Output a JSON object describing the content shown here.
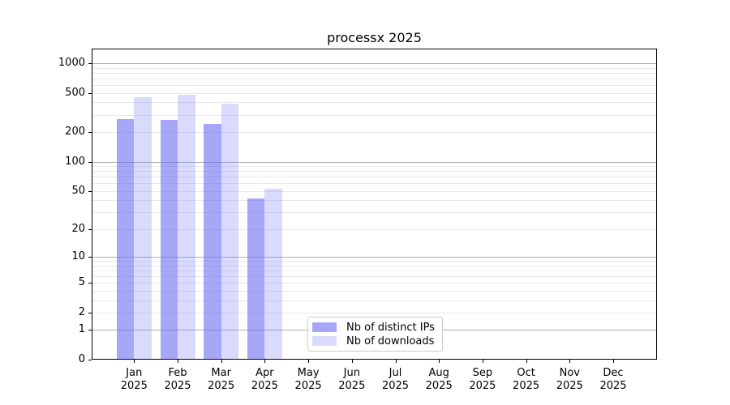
{
  "title": "processx 2025",
  "chart_data": {
    "type": "bar",
    "title": "processx 2025",
    "categories": [
      "Jan",
      "Feb",
      "Mar",
      "Apr",
      "May",
      "Jun",
      "Jul",
      "Aug",
      "Sep",
      "Oct",
      "Nov",
      "Dec"
    ],
    "category_year_line": "2025",
    "series": [
      {
        "name": "Nb of distinct IPs",
        "color": "rgba(108,108,242,0.60)",
        "values": [
          270,
          266,
          244,
          42,
          null,
          null,
          null,
          null,
          null,
          null,
          null,
          null
        ]
      },
      {
        "name": "Nb of downloads",
        "color": "rgba(108,108,242,0.25)",
        "values": [
          455,
          480,
          390,
          53,
          null,
          null,
          null,
          null,
          null,
          null,
          null,
          null
        ]
      }
    ],
    "yscale": "log1p",
    "yticks": [
      0,
      1,
      2,
      5,
      10,
      20,
      50,
      100,
      200,
      500,
      1000
    ],
    "ylim": [
      0,
      1400
    ],
    "xlabel": "",
    "ylabel": "",
    "grid": {
      "orientation": "horizontal",
      "major_ticks": [
        1,
        10,
        100,
        1000
      ],
      "minor": true
    },
    "legend_position": "inside-bottom-center"
  },
  "colors": {
    "bar_distinct_ips": "rgba(108,108,242,0.60)",
    "bar_downloads": "rgba(108,108,242,0.25)",
    "grid_major": "#b0b0b0",
    "grid_minor": "#e9e9e9",
    "spine": "#000000",
    "text": "#000000",
    "legend_border": "#cccccc"
  }
}
